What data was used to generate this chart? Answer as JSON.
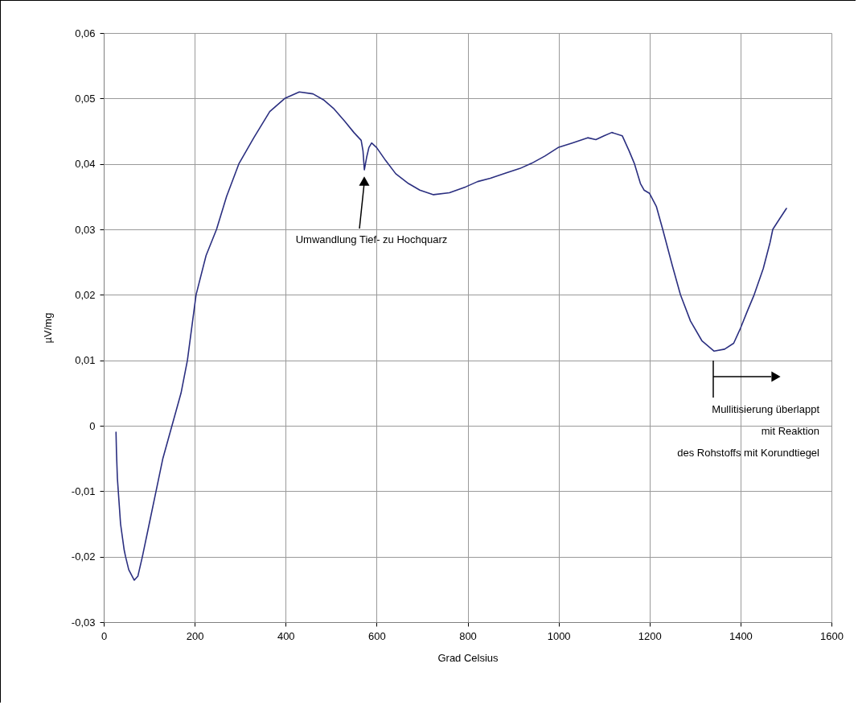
{
  "chart_data": {
    "type": "line",
    "xlabel": "Grad Celsius",
    "ylabel": "µV/mg",
    "x": [
      27,
      28,
      30,
      32,
      37,
      45,
      48,
      55,
      67,
      75,
      85,
      100,
      115,
      130,
      150,
      170,
      184,
      203,
      225,
      248,
      270,
      297,
      330,
      365,
      398,
      430,
      460,
      483,
      505,
      530,
      550,
      566,
      570,
      573,
      578,
      583,
      589,
      600,
      620,
      642,
      670,
      695,
      725,
      760,
      796,
      822,
      850,
      884,
      915,
      941,
      970,
      999,
      1030,
      1064,
      1082,
      1100,
      1117,
      1140,
      1155,
      1167,
      1180,
      1188,
      1200,
      1215,
      1229,
      1250,
      1268,
      1290,
      1315,
      1342,
      1365,
      1385,
      1400,
      1415,
      1430,
      1450,
      1465,
      1471,
      1485,
      1501
    ],
    "series": [
      {
        "color": "#2b2f80",
        "values": [
          -0.001,
          -0.004,
          -0.008,
          -0.01,
          -0.015,
          -0.019,
          -0.02,
          -0.022,
          -0.0236,
          -0.023,
          -0.02,
          -0.015,
          -0.01,
          -0.005,
          0,
          0.005,
          0.01,
          0.02,
          0.026,
          0.03,
          0.035,
          0.04,
          0.044,
          0.048,
          0.05,
          0.051,
          0.0507,
          0.0498,
          0.0485,
          0.0465,
          0.0448,
          0.0436,
          0.042,
          0.0391,
          0.041,
          0.0425,
          0.0432,
          0.0425,
          0.0405,
          0.0385,
          0.037,
          0.036,
          0.0353,
          0.0356,
          0.0365,
          0.0373,
          0.0378,
          0.0386,
          0.0393,
          0.0401,
          0.0412,
          0.0425,
          0.0432,
          0.044,
          0.0437,
          0.0443,
          0.0448,
          0.0443,
          0.042,
          0.04,
          0.037,
          0.036,
          0.0355,
          0.0335,
          0.03,
          0.0245,
          0.02,
          0.016,
          0.013,
          0.0114,
          0.0117,
          0.0126,
          0.0149,
          0.0175,
          0.02,
          0.024,
          0.028,
          0.03,
          0.0315,
          0.0332
        ]
      }
    ],
    "xlim": [
      0,
      1600
    ],
    "xticks": [
      0,
      200,
      400,
      600,
      800,
      1000,
      1200,
      1400,
      1600
    ],
    "ylim": [
      -0.03,
      0.06
    ],
    "yticks": [
      {
        "value": -0.03,
        "label": "-0,03"
      },
      {
        "value": -0.02,
        "label": "-0,02"
      },
      {
        "value": -0.01,
        "label": "-0,01"
      },
      {
        "value": 0,
        "label": "0"
      },
      {
        "value": 0.01,
        "label": "0,01"
      },
      {
        "value": 0.02,
        "label": "0,02"
      },
      {
        "value": 0.03,
        "label": "0,03"
      },
      {
        "value": 0.04,
        "label": "0,04"
      },
      {
        "value": 0.05,
        "label": "0,05"
      },
      {
        "value": 0.06,
        "label": "0,06"
      }
    ],
    "grid": true,
    "annotations": [
      "Umwandlung Tief- zu Hochquarz",
      "Mullitisierung überlappt\nmit Reaktion\ndes Rohstoffs mit Korundtiegel"
    ]
  }
}
